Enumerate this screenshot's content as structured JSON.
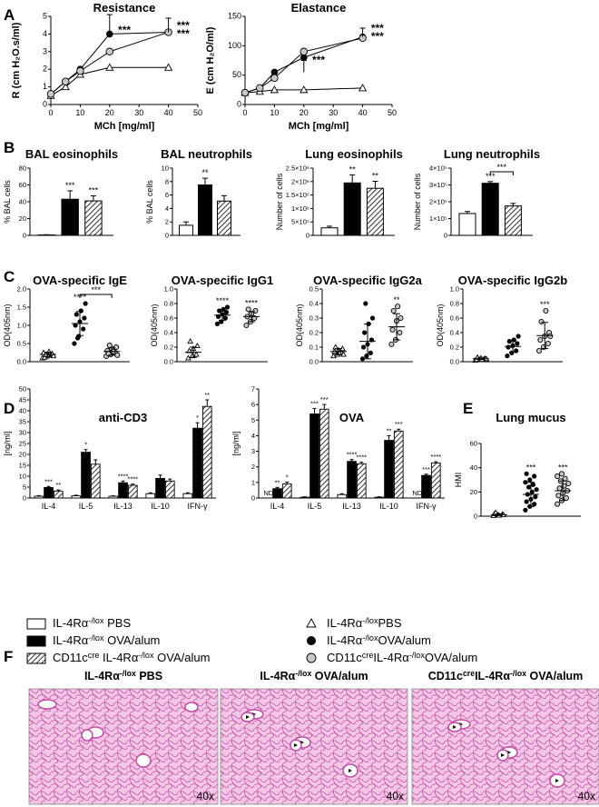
{
  "chart_data": [
    {
      "id": "A1",
      "panel": "A",
      "type": "line",
      "title": "Resistance",
      "xlabel": "MCh [mg/ml]",
      "ylabel": "R (cm H2O.s/ml)",
      "xlim": [
        0,
        50
      ],
      "ylim": [
        0,
        5
      ],
      "xticks": [
        "0",
        "10",
        "20",
        "30",
        "40",
        "50"
      ],
      "yticks": [
        "0",
        "1",
        "2",
        "3",
        "4",
        "5"
      ],
      "x": [
        0,
        5,
        10,
        20,
        40
      ],
      "series": [
        {
          "group": "pbs",
          "marker": "triangle",
          "y": [
            0.5,
            1.0,
            1.7,
            2.1,
            2.1
          ]
        },
        {
          "group": "ova",
          "marker": "filled-circle",
          "y": [
            0.6,
            1.3,
            2.0,
            4.0,
            4.1
          ]
        },
        {
          "group": "cre",
          "marker": "grey-circle",
          "y": [
            0.6,
            1.3,
            1.9,
            3.0,
            4.1
          ]
        }
      ],
      "annotations": [
        "***",
        "***",
        "***"
      ]
    },
    {
      "id": "A2",
      "panel": "A",
      "type": "line",
      "title": "Elastance",
      "xlabel": "MCh [mg/ml]",
      "ylabel": "E (cm H2O/ml)",
      "xlim": [
        0,
        50
      ],
      "ylim": [
        0,
        150
      ],
      "xticks": [
        "0",
        "10",
        "20",
        "30",
        "40",
        "50"
      ],
      "yticks": [
        "0",
        "50",
        "100",
        "150"
      ],
      "x": [
        0,
        5,
        10,
        20,
        40
      ],
      "series": [
        {
          "group": "pbs",
          "marker": "triangle",
          "y": [
            20,
            22,
            25,
            25,
            28
          ]
        },
        {
          "group": "ova",
          "marker": "filled-circle",
          "y": [
            20,
            28,
            55,
            80,
            115
          ]
        },
        {
          "group": "cre",
          "marker": "grey-circle",
          "y": [
            20,
            28,
            45,
            90,
            113
          ]
        }
      ],
      "annotations": [
        "***",
        "***",
        "***"
      ]
    },
    {
      "id": "B1",
      "panel": "B",
      "type": "bar",
      "title": "BAL eosinophils",
      "ylabel": "% BAL cells",
      "ylim": [
        0,
        80
      ],
      "yticks": [
        "0",
        "20",
        "40",
        "60",
        "80"
      ],
      "values": [
        0.5,
        43,
        41
      ],
      "errors": [
        0.3,
        10,
        6
      ],
      "sig": [
        "",
        "***",
        "***"
      ]
    },
    {
      "id": "B2",
      "panel": "B",
      "type": "bar",
      "title": "BAL neutrophils",
      "ylabel": "% BAL cells",
      "ylim": [
        0,
        10
      ],
      "yticks": [
        "0",
        "2",
        "4",
        "6",
        "8",
        "10"
      ],
      "values": [
        1.5,
        7.5,
        5.1
      ],
      "errors": [
        0.5,
        1.0,
        0.8
      ],
      "sig": [
        "",
        "**",
        ""
      ]
    },
    {
      "id": "B3",
      "panel": "B",
      "type": "bar",
      "title": "Lung eosinophils",
      "ylabel": "Number of cells",
      "ylim": [
        0,
        2500000
      ],
      "yticks": [
        "0",
        "5×10⁵",
        "1×10⁶",
        "1.5×10⁶",
        "2×10⁶",
        "2.5×10⁶"
      ],
      "values": [
        280000,
        1950000,
        1750000
      ],
      "errors": [
        60000,
        300000,
        260000
      ],
      "sig": [
        "",
        "**",
        "**"
      ]
    },
    {
      "id": "B4",
      "panel": "B",
      "type": "bar",
      "title": "Lung neutrophils",
      "ylabel": "Number of cells",
      "ylim": [
        0,
        400000
      ],
      "yticks": [
        "0",
        "1×10⁵",
        "2×10⁵",
        "3×10⁵",
        "4×10⁵"
      ],
      "values": [
        130000,
        310000,
        175000
      ],
      "errors": [
        12000,
        10000,
        15000
      ],
      "sig": [
        "",
        "***",
        ""
      ],
      "bracket": "***"
    },
    {
      "id": "C1",
      "panel": "C",
      "type": "scatter",
      "title": "OVA-specific IgE",
      "ylabel": "OD(405nm)",
      "ylim": [
        0,
        2.0
      ],
      "yticks": [
        "0.0",
        "0.5",
        "1.0",
        "1.5",
        "2.0"
      ],
      "groups": [
        {
          "group": "pbs",
          "points": [
            0.1,
            0.15,
            0.2,
            0.25,
            0.18,
            0.22,
            0.12,
            0.28,
            0.16,
            0.2
          ],
          "mean": 0.2,
          "sd": 0.06
        },
        {
          "group": "ova",
          "points": [
            0.5,
            0.7,
            0.9,
            1.0,
            1.1,
            1.2,
            1.3,
            1.4,
            1.6,
            0.65
          ],
          "mean": 1.05,
          "sd": 0.33
        },
        {
          "group": "cre",
          "points": [
            0.15,
            0.2,
            0.25,
            0.3,
            0.35,
            0.4,
            0.22,
            0.28,
            0.18,
            0.45
          ],
          "mean": 0.28,
          "sd": 0.1
        }
      ],
      "sig": [
        "",
        "****",
        ""
      ],
      "bracket": "***"
    },
    {
      "id": "C2",
      "panel": "C",
      "type": "scatter",
      "title": "OVA-specific IgG1",
      "ylabel": "OD(405nm)",
      "ylim": [
        0,
        1.0
      ],
      "yticks": [
        "0.0",
        "0.2",
        "0.4",
        "0.6",
        "0.8",
        "1.0"
      ],
      "groups": [
        {
          "group": "pbs",
          "points": [
            0.05,
            0.08,
            0.1,
            0.15,
            0.18,
            0.22,
            0.28
          ],
          "mean": 0.13,
          "sd": 0.07
        },
        {
          "group": "ova",
          "points": [
            0.52,
            0.55,
            0.6,
            0.62,
            0.65,
            0.68,
            0.7,
            0.72,
            0.75
          ],
          "mean": 0.64,
          "sd": 0.07
        },
        {
          "group": "cre",
          "points": [
            0.5,
            0.55,
            0.6,
            0.62,
            0.66,
            0.7,
            0.72
          ],
          "mean": 0.62,
          "sd": 0.07
        }
      ],
      "sig": [
        "",
        "****",
        "****"
      ]
    },
    {
      "id": "C3",
      "panel": "C",
      "type": "scatter",
      "title": "OVA-specific IgG2a",
      "ylabel": "OD(405nm)",
      "ylim": [
        0,
        0.5
      ],
      "yticks": [
        "0.0",
        "0.1",
        "0.2",
        "0.3",
        "0.4",
        "0.5"
      ],
      "groups": [
        {
          "group": "pbs",
          "points": [
            0.04,
            0.05,
            0.06,
            0.07,
            0.08,
            0.09,
            0.1,
            0.06,
            0.05
          ],
          "mean": 0.07,
          "sd": 0.02
        },
        {
          "group": "ova",
          "points": [
            0.02,
            0.04,
            0.06,
            0.1,
            0.12,
            0.15,
            0.2,
            0.26,
            0.3,
            0.4
          ],
          "mean": 0.14,
          "sd": 0.12
        },
        {
          "group": "cre",
          "points": [
            0.12,
            0.15,
            0.2,
            0.22,
            0.28,
            0.3,
            0.35,
            0.38
          ],
          "mean": 0.24,
          "sd": 0.09
        }
      ],
      "sig": [
        "",
        "",
        "**"
      ]
    },
    {
      "id": "C4",
      "panel": "C",
      "type": "scatter",
      "title": "OVA-specific IgG2b",
      "ylabel": "OD(405nm)",
      "ylim": [
        0,
        1.0
      ],
      "yticks": [
        "0.0",
        "0.2",
        "0.4",
        "0.6",
        "0.8",
        "1.0"
      ],
      "groups": [
        {
          "group": "pbs",
          "points": [
            0.02,
            0.03,
            0.04,
            0.03,
            0.05,
            0.04,
            0.06,
            0.03,
            0.04
          ],
          "mean": 0.04,
          "sd": 0.01
        },
        {
          "group": "ova",
          "points": [
            0.08,
            0.12,
            0.15,
            0.2,
            0.22,
            0.25,
            0.28,
            0.3,
            0.35
          ],
          "mean": 0.21,
          "sd": 0.08
        },
        {
          "group": "cre",
          "points": [
            0.15,
            0.2,
            0.25,
            0.3,
            0.35,
            0.4,
            0.55,
            0.7,
            0.35
          ],
          "mean": 0.36,
          "sd": 0.18
        }
      ],
      "sig": [
        "",
        "",
        "***"
      ]
    },
    {
      "id": "D1",
      "panel": "D",
      "type": "bar",
      "title": "anti-CD3",
      "ylabel": "[ng/ml]",
      "ylim": [
        0,
        50
      ],
      "yticks": [
        "0",
        "5",
        "10",
        "15",
        "20",
        "25",
        "30",
        "35",
        "40",
        "45",
        "50"
      ],
      "categories": [
        "IL-4",
        "IL-5",
        "IL-13",
        "IL-10",
        "IFN-γ"
      ],
      "series": [
        {
          "group": "pbs",
          "values": [
            0.8,
            1.0,
            0.8,
            2.0,
            2.0
          ],
          "errors": [
            0.3,
            0.3,
            0.2,
            0.4,
            0.4
          ],
          "sig": [
            "",
            "",
            "",
            "",
            ""
          ]
        },
        {
          "group": "ova",
          "values": [
            4.8,
            21.0,
            7.0,
            9.0,
            32.0
          ],
          "errors": [
            0.5,
            1.2,
            0.8,
            1.5,
            2.5
          ],
          "sig": [
            "***",
            "*",
            "****",
            "",
            "*"
          ]
        },
        {
          "group": "cre",
          "values": [
            3.2,
            15.5,
            5.8,
            7.8,
            42.0
          ],
          "errors": [
            0.5,
            2.0,
            0.6,
            0.9,
            3.0
          ],
          "sig": [
            "**",
            "",
            "****",
            "",
            "**"
          ]
        }
      ]
    },
    {
      "id": "D2",
      "panel": "D",
      "type": "bar",
      "title": "OVA",
      "ylabel": "[ng/ml]",
      "ylim": [
        0,
        7
      ],
      "yticks": [
        "0",
        "1",
        "2",
        "3",
        "4",
        "5",
        "6",
        "7"
      ],
      "categories": [
        "IL-4",
        "IL-5",
        "IL-13",
        "IL-10",
        "IFN-γ"
      ],
      "series": [
        {
          "group": "pbs",
          "values": [
            0,
            0.05,
            0.22,
            0.05,
            0
          ],
          "errors": [
            0,
            0.03,
            0.05,
            0.03,
            0
          ],
          "nd": [
            "ND",
            "",
            "",
            "",
            "ND"
          ],
          "sig": [
            "",
            "",
            "",
            "",
            ""
          ]
        },
        {
          "group": "ova",
          "values": [
            0.6,
            5.4,
            2.35,
            3.7,
            1.45
          ],
          "errors": [
            0.08,
            0.35,
            0.12,
            0.3,
            0.08
          ],
          "sig": [
            "**",
            "***",
            "****",
            "**",
            "***"
          ]
        },
        {
          "group": "cre",
          "values": [
            0.9,
            5.7,
            2.2,
            4.3,
            2.25
          ],
          "errors": [
            0.12,
            0.3,
            0.1,
            0.12,
            0.08
          ],
          "sig": [
            "*",
            "***",
            "****",
            "***",
            "****"
          ]
        }
      ]
    },
    {
      "id": "E",
      "panel": "E",
      "type": "scatter",
      "title": "Lung mucus",
      "ylabel": "HMI",
      "ylim": [
        0,
        60
      ],
      "yticks": [
        "0",
        "20",
        "40",
        "60"
      ],
      "groups": [
        {
          "group": "pbs",
          "points": [
            0.5,
            1,
            1.5,
            2,
            0.8,
            1.2,
            3
          ],
          "mean": 1.2,
          "sd": 0.7
        },
        {
          "group": "ova",
          "points": [
            5,
            8,
            10,
            12,
            14,
            16,
            18,
            20,
            22,
            24,
            26,
            28,
            30,
            33,
            35
          ],
          "mean": 18,
          "sd": 10
        },
        {
          "group": "cre",
          "points": [
            10,
            13,
            15,
            17,
            19,
            21,
            23,
            25,
            27,
            29,
            31,
            33,
            35
          ],
          "mean": 21,
          "sd": 8
        }
      ],
      "sig": [
        "",
        "***",
        "***"
      ]
    }
  ],
  "panel_letters": {
    "A": "A",
    "B": "B",
    "C": "C",
    "D": "D",
    "E": "E",
    "F": "F"
  },
  "labels": {
    "A1_y": "R (cm H₂O.s/ml)",
    "A2_y": "E (cm H₂O/ml)",
    "A_x": "MCh [mg/ml]"
  },
  "legend": {
    "bars": [
      {
        "pre": "IL-4Rα",
        "sup": "-/lox",
        "post": " PBS"
      },
      {
        "pre": "IL-4Rα",
        "sup": "-/lox",
        "post": " OVA/alum"
      },
      {
        "pre": "CD11c",
        "sup": "cre",
        "pre2": " IL-4Rα",
        "sup2": "-/lox",
        "post": " OVA/alum"
      }
    ],
    "markers": [
      {
        "pre": "IL-4Rα",
        "sup": "-/lox",
        "post": "PBS"
      },
      {
        "pre": "IL-4Rα",
        "sup": "-/lox",
        "post": "OVA/alum"
      },
      {
        "pre": "CD11c",
        "sup": "cre",
        "pre2": "IL-4Rα",
        "sup2": "-/lox",
        "post": "OVA/alum"
      }
    ]
  },
  "histology": {
    "titles": [
      {
        "pre": "IL-4Rα",
        "sup": "-/lox",
        "post": " PBS"
      },
      {
        "pre": "IL-4Rα",
        "sup": "-/lox",
        "post": " OVA/alum"
      },
      {
        "pre": "CD11c",
        "sup": "cre",
        "pre2": "IL-4Rα",
        "sup2": "-/lox",
        "post": " OVA/alum"
      }
    ],
    "magnification": "40x",
    "stain_colors": [
      "#f3c6e6",
      "#c24aa5",
      "#e08cc8"
    ]
  },
  "colors": {
    "pbs": "#ffffff",
    "ova": "#000000",
    "cre_marker": "#c8c8c8",
    "cre_bar": "hatched"
  }
}
